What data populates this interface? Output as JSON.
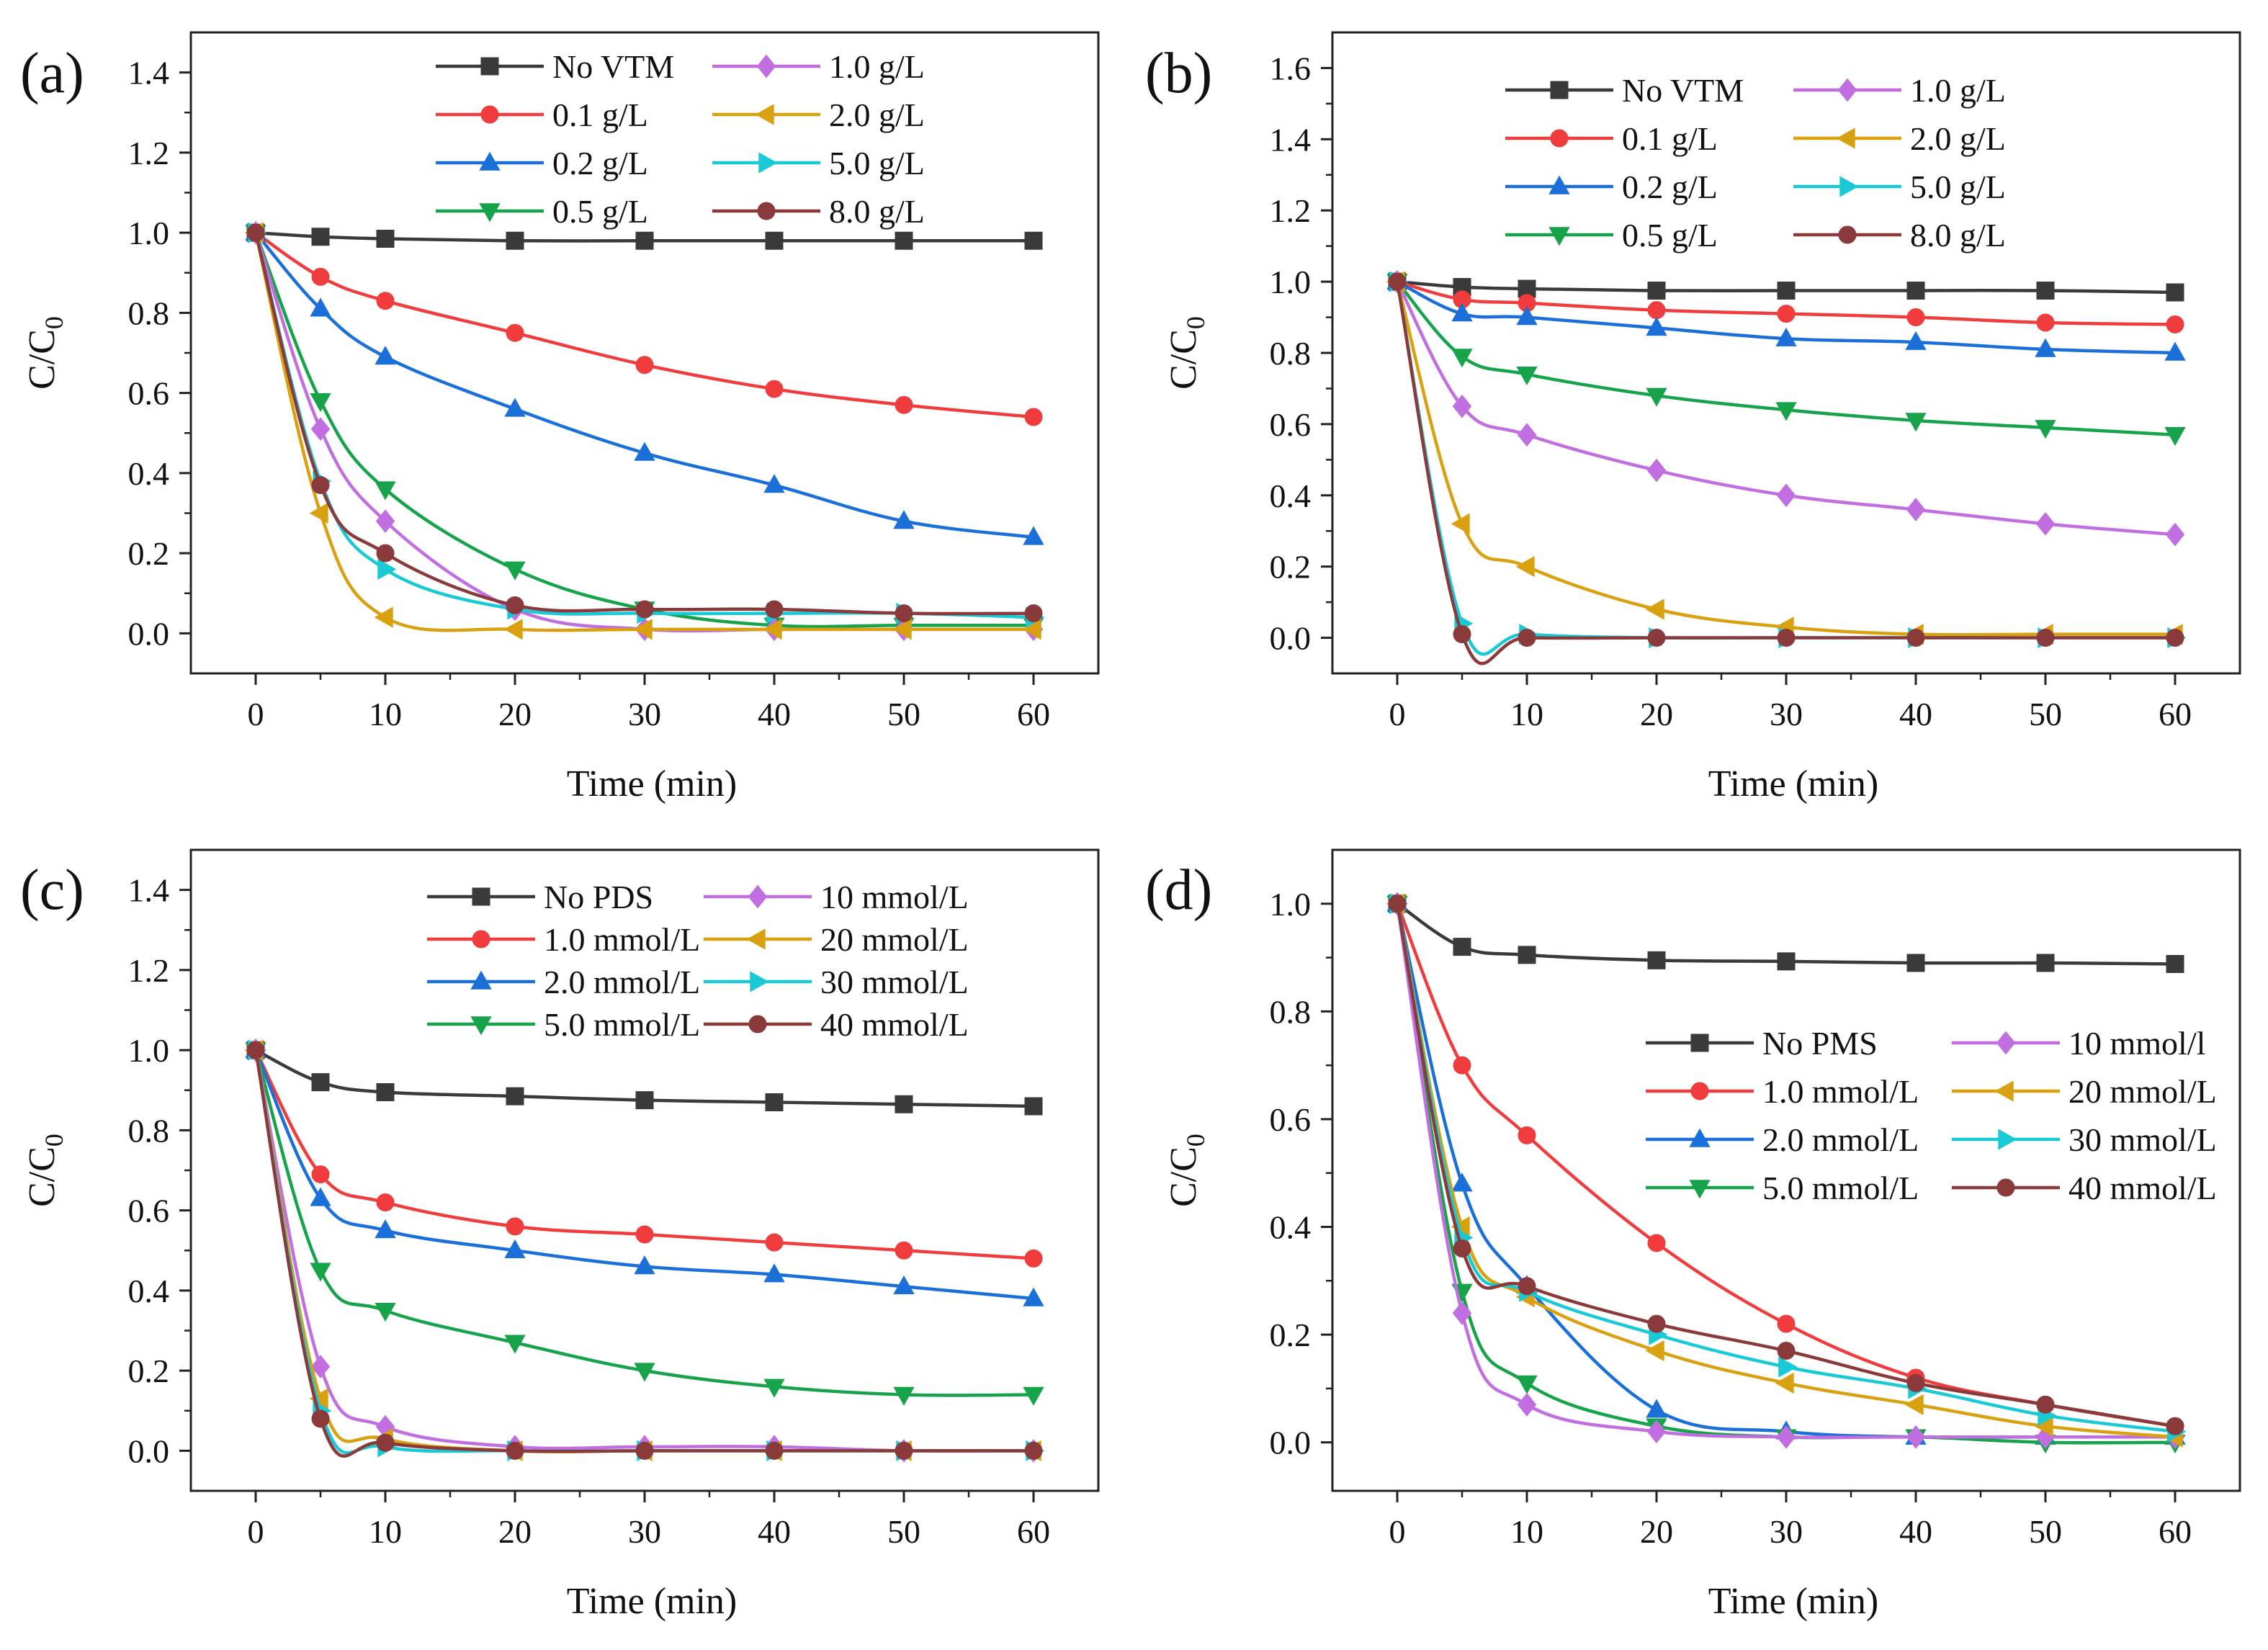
{
  "figure": {
    "colors": {
      "black": "#3a3a3a",
      "red": "#f03c3c",
      "blue": "#1a6fd8",
      "green": "#16a34a",
      "violet": "#c06ee0",
      "orange": "#d9a010",
      "cyan": "#19c9d6",
      "brown": "#8a3a3a"
    }
  },
  "chart_data": [
    {
      "panel": "(a)",
      "type": "line",
      "xlabel": "Time (min)",
      "ylabel": "C/C",
      "ylabel_sub": "0",
      "xlim": [
        -5,
        65
      ],
      "ylim": [
        -0.1,
        1.5
      ],
      "xticks": [
        0,
        10,
        20,
        30,
        40,
        50,
        60
      ],
      "yticks": [
        0.0,
        0.2,
        0.4,
        0.6,
        0.8,
        1.0,
        1.2,
        1.4
      ],
      "legend_position": "top",
      "x": [
        0,
        5,
        10,
        20,
        30,
        40,
        50,
        60
      ],
      "series": [
        {
          "name": "No VTM",
          "marker": "square",
          "color": "black",
          "values": [
            1.0,
            0.99,
            0.985,
            0.98,
            0.98,
            0.98,
            0.98,
            0.98
          ]
        },
        {
          "name": "0.1 g/L",
          "marker": "circle",
          "color": "red",
          "values": [
            1.0,
            0.89,
            0.83,
            0.75,
            0.67,
            0.61,
            0.57,
            0.54
          ]
        },
        {
          "name": "0.2 g/L",
          "marker": "triangle-up",
          "color": "blue",
          "values": [
            1.0,
            0.81,
            0.69,
            0.56,
            0.45,
            0.37,
            0.28,
            0.24
          ]
        },
        {
          "name": "0.5 g/L",
          "marker": "triangle-down",
          "color": "green",
          "values": [
            1.0,
            0.58,
            0.36,
            0.16,
            0.06,
            0.02,
            0.02,
            0.02
          ]
        },
        {
          "name": "1.0 g/L",
          "marker": "diamond",
          "color": "violet",
          "values": [
            1.0,
            0.51,
            0.28,
            0.06,
            0.01,
            0.01,
            0.01,
            0.01
          ]
        },
        {
          "name": "2.0 g/L",
          "marker": "triangle-left",
          "color": "orange",
          "values": [
            1.0,
            0.3,
            0.04,
            0.01,
            0.01,
            0.01,
            0.01,
            0.01
          ]
        },
        {
          "name": "5.0 g/L",
          "marker": "triangle-right",
          "color": "cyan",
          "values": [
            1.0,
            0.38,
            0.16,
            0.06,
            0.05,
            0.05,
            0.05,
            0.04
          ]
        },
        {
          "name": "8.0 g/L",
          "marker": "circle",
          "color": "brown",
          "values": [
            1.0,
            0.37,
            0.2,
            0.07,
            0.06,
            0.06,
            0.05,
            0.05
          ]
        }
      ]
    },
    {
      "panel": "(b)",
      "type": "line",
      "xlabel": "Time (min)",
      "ylabel": "C/C",
      "ylabel_sub": "0",
      "xlim": [
        -5,
        65
      ],
      "ylim": [
        -0.1,
        1.7
      ],
      "xticks": [
        0,
        10,
        20,
        30,
        40,
        50,
        60
      ],
      "yticks": [
        0.0,
        0.2,
        0.4,
        0.6,
        0.8,
        1.0,
        1.2,
        1.4,
        1.6
      ],
      "legend_position": "top",
      "x": [
        0,
        5,
        10,
        20,
        30,
        40,
        50,
        60
      ],
      "series": [
        {
          "name": "No VTM",
          "marker": "square",
          "color": "black",
          "values": [
            1.0,
            0.985,
            0.98,
            0.975,
            0.975,
            0.975,
            0.975,
            0.97
          ]
        },
        {
          "name": "0.1 g/L",
          "marker": "circle",
          "color": "red",
          "values": [
            1.0,
            0.95,
            0.94,
            0.92,
            0.91,
            0.9,
            0.885,
            0.88
          ]
        },
        {
          "name": "0.2 g/L",
          "marker": "triangle-up",
          "color": "blue",
          "values": [
            1.0,
            0.91,
            0.9,
            0.87,
            0.84,
            0.83,
            0.81,
            0.8
          ]
        },
        {
          "name": "0.5 g/L",
          "marker": "triangle-down",
          "color": "green",
          "values": [
            1.0,
            0.79,
            0.74,
            0.68,
            0.64,
            0.61,
            0.59,
            0.57
          ]
        },
        {
          "name": "1.0 g/L",
          "marker": "diamond",
          "color": "violet",
          "values": [
            1.0,
            0.65,
            0.57,
            0.47,
            0.4,
            0.36,
            0.32,
            0.29
          ]
        },
        {
          "name": "2.0 g/L",
          "marker": "triangle-left",
          "color": "orange",
          "values": [
            1.0,
            0.32,
            0.2,
            0.08,
            0.03,
            0.01,
            0.01,
            0.01
          ]
        },
        {
          "name": "5.0 g/L",
          "marker": "triangle-right",
          "color": "cyan",
          "values": [
            1.0,
            0.04,
            0.01,
            0.0,
            0.0,
            0.0,
            0.0,
            0.0
          ]
        },
        {
          "name": "8.0 g/L",
          "marker": "circle",
          "color": "brown",
          "values": [
            1.0,
            0.01,
            0.0,
            0.0,
            0.0,
            0.0,
            0.0,
            0.0
          ]
        }
      ]
    },
    {
      "panel": "(c)",
      "type": "line",
      "xlabel": "Time (min)",
      "ylabel": "C/C",
      "ylabel_sub": "0",
      "xlim": [
        -5,
        65
      ],
      "ylim": [
        -0.1,
        1.5
      ],
      "xticks": [
        0,
        10,
        20,
        30,
        40,
        50,
        60
      ],
      "yticks": [
        0.0,
        0.2,
        0.4,
        0.6,
        0.8,
        1.0,
        1.2,
        1.4
      ],
      "legend_position": "top",
      "x": [
        0,
        5,
        10,
        20,
        30,
        40,
        50,
        60
      ],
      "series": [
        {
          "name": "No PDS",
          "marker": "square",
          "color": "black",
          "values": [
            1.0,
            0.92,
            0.895,
            0.885,
            0.875,
            0.87,
            0.865,
            0.86
          ]
        },
        {
          "name": "1.0 mmol/L",
          "marker": "circle",
          "color": "red",
          "values": [
            1.0,
            0.69,
            0.62,
            0.56,
            0.54,
            0.52,
            0.5,
            0.48
          ]
        },
        {
          "name": "2.0 mmol/L",
          "marker": "triangle-up",
          "color": "blue",
          "values": [
            1.0,
            0.63,
            0.55,
            0.5,
            0.46,
            0.44,
            0.41,
            0.38
          ]
        },
        {
          "name": "5.0 mmol/L",
          "marker": "triangle-down",
          "color": "green",
          "values": [
            1.0,
            0.45,
            0.35,
            0.27,
            0.2,
            0.16,
            0.14,
            0.14
          ]
        },
        {
          "name": "10 mmol/L",
          "marker": "diamond",
          "color": "violet",
          "values": [
            1.0,
            0.21,
            0.06,
            0.01,
            0.01,
            0.01,
            0.0,
            0.0
          ]
        },
        {
          "name": "20 mmol/L",
          "marker": "triangle-left",
          "color": "orange",
          "values": [
            1.0,
            0.13,
            0.03,
            0.0,
            0.0,
            0.0,
            0.0,
            0.0
          ]
        },
        {
          "name": "30 mmol/L",
          "marker": "triangle-right",
          "color": "cyan",
          "values": [
            1.0,
            0.1,
            0.01,
            0.0,
            0.0,
            0.0,
            0.0,
            0.0
          ]
        },
        {
          "name": "40 mmol/L",
          "marker": "circle",
          "color": "brown",
          "values": [
            1.0,
            0.08,
            0.02,
            0.0,
            0.0,
            0.0,
            0.0,
            0.0
          ]
        }
      ]
    },
    {
      "panel": "(d)",
      "type": "line",
      "xlabel": "Time (min)",
      "ylabel": "C/C",
      "ylabel_sub": "0",
      "xlim": [
        -5,
        65
      ],
      "ylim": [
        -0.09,
        1.1
      ],
      "xticks": [
        0,
        10,
        20,
        30,
        40,
        50,
        60
      ],
      "yticks": [
        0.0,
        0.2,
        0.4,
        0.6,
        0.8,
        1.0
      ],
      "legend_position": "right",
      "x": [
        0,
        5,
        10,
        20,
        30,
        40,
        50,
        60
      ],
      "series": [
        {
          "name": "No PMS",
          "marker": "square",
          "color": "black",
          "values": [
            1.0,
            0.92,
            0.905,
            0.895,
            0.893,
            0.89,
            0.89,
            0.888
          ]
        },
        {
          "name": "1.0 mmol/L",
          "marker": "circle",
          "color": "red",
          "values": [
            1.0,
            0.7,
            0.57,
            0.37,
            0.22,
            0.12,
            0.07,
            0.03
          ]
        },
        {
          "name": "2.0 mmol/L",
          "marker": "triangle-up",
          "color": "blue",
          "values": [
            1.0,
            0.48,
            0.29,
            0.06,
            0.02,
            0.01,
            0.01,
            0.01
          ]
        },
        {
          "name": "5.0 mmol/L",
          "marker": "triangle-down",
          "color": "green",
          "values": [
            1.0,
            0.28,
            0.11,
            0.03,
            0.01,
            0.01,
            0.0,
            0.0
          ]
        },
        {
          "name": "10 mmol/l",
          "marker": "diamond",
          "color": "violet",
          "values": [
            1.0,
            0.24,
            0.07,
            0.02,
            0.01,
            0.01,
            0.01,
            0.01
          ]
        },
        {
          "name": "20 mmol/L",
          "marker": "triangle-left",
          "color": "orange",
          "values": [
            1.0,
            0.4,
            0.27,
            0.17,
            0.11,
            0.07,
            0.03,
            0.01
          ]
        },
        {
          "name": "30 mmol/L",
          "marker": "triangle-right",
          "color": "cyan",
          "values": [
            1.0,
            0.38,
            0.28,
            0.2,
            0.14,
            0.1,
            0.05,
            0.02
          ]
        },
        {
          "name": "40 mmol/L",
          "marker": "circle",
          "color": "brown",
          "values": [
            1.0,
            0.36,
            0.29,
            0.22,
            0.17,
            0.11,
            0.07,
            0.03
          ]
        }
      ]
    }
  ]
}
